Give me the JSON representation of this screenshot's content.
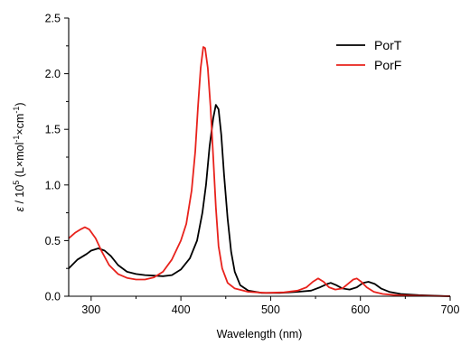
{
  "chart_data": {
    "type": "line",
    "xlabel": "Wavelength (nm)",
    "ylabel": {
      "epsilon": "ε",
      "slash_ten": " / 10",
      "exp5": "5",
      "unit_open": " (L×mol",
      "exp_neg1a": "-1",
      "unit_mid": "×cm",
      "exp_neg1b": "-1",
      "unit_close": ")"
    },
    "xlim": [
      275,
      700
    ],
    "ylim": [
      0,
      2.5
    ],
    "xticks": [
      300,
      400,
      500,
      600,
      700
    ],
    "xtick_labels": [
      "300",
      "400",
      "500",
      "600",
      "700"
    ],
    "yticks": [
      0,
      0.5,
      1.0,
      1.5,
      2.0,
      2.5
    ],
    "ytick_labels": [
      "0.0",
      "0.5",
      "1.0",
      "1.5",
      "2.0",
      "2.5"
    ],
    "grid": false,
    "legend_position": "top-right",
    "series": [
      {
        "name": "PorT",
        "color": "#000000",
        "points": [
          [
            275,
            0.25
          ],
          [
            285,
            0.33
          ],
          [
            295,
            0.38
          ],
          [
            300,
            0.41
          ],
          [
            308,
            0.43
          ],
          [
            315,
            0.41
          ],
          [
            322,
            0.36
          ],
          [
            330,
            0.28
          ],
          [
            340,
            0.22
          ],
          [
            350,
            0.2
          ],
          [
            360,
            0.19
          ],
          [
            370,
            0.185
          ],
          [
            380,
            0.18
          ],
          [
            390,
            0.19
          ],
          [
            400,
            0.24
          ],
          [
            410,
            0.34
          ],
          [
            418,
            0.5
          ],
          [
            424,
            0.75
          ],
          [
            428,
            1.0
          ],
          [
            432,
            1.35
          ],
          [
            436,
            1.6
          ],
          [
            439,
            1.72
          ],
          [
            442,
            1.68
          ],
          [
            445,
            1.45
          ],
          [
            448,
            1.1
          ],
          [
            452,
            0.7
          ],
          [
            456,
            0.4
          ],
          [
            460,
            0.22
          ],
          [
            466,
            0.1
          ],
          [
            475,
            0.05
          ],
          [
            490,
            0.03
          ],
          [
            510,
            0.03
          ],
          [
            530,
            0.04
          ],
          [
            545,
            0.05
          ],
          [
            555,
            0.08
          ],
          [
            563,
            0.11
          ],
          [
            567,
            0.12
          ],
          [
            573,
            0.1
          ],
          [
            580,
            0.07
          ],
          [
            588,
            0.06
          ],
          [
            596,
            0.08
          ],
          [
            603,
            0.12
          ],
          [
            609,
            0.13
          ],
          [
            616,
            0.11
          ],
          [
            623,
            0.07
          ],
          [
            632,
            0.04
          ],
          [
            645,
            0.02
          ],
          [
            665,
            0.01
          ],
          [
            700,
            0.0
          ]
        ]
      },
      {
        "name": "PorF",
        "color": "#e8221c",
        "points": [
          [
            275,
            0.52
          ],
          [
            282,
            0.57
          ],
          [
            288,
            0.6
          ],
          [
            293,
            0.62
          ],
          [
            298,
            0.6
          ],
          [
            305,
            0.52
          ],
          [
            312,
            0.4
          ],
          [
            320,
            0.28
          ],
          [
            330,
            0.2
          ],
          [
            340,
            0.165
          ],
          [
            350,
            0.15
          ],
          [
            360,
            0.15
          ],
          [
            370,
            0.17
          ],
          [
            380,
            0.22
          ],
          [
            390,
            0.33
          ],
          [
            400,
            0.5
          ],
          [
            406,
            0.65
          ],
          [
            412,
            0.95
          ],
          [
            416,
            1.3
          ],
          [
            419,
            1.7
          ],
          [
            422,
            2.05
          ],
          [
            425,
            2.24
          ],
          [
            427,
            2.23
          ],
          [
            430,
            2.05
          ],
          [
            433,
            1.7
          ],
          [
            436,
            1.25
          ],
          [
            439,
            0.8
          ],
          [
            442,
            0.45
          ],
          [
            446,
            0.25
          ],
          [
            452,
            0.12
          ],
          [
            460,
            0.07
          ],
          [
            475,
            0.04
          ],
          [
            495,
            0.03
          ],
          [
            515,
            0.035
          ],
          [
            530,
            0.05
          ],
          [
            540,
            0.08
          ],
          [
            547,
            0.13
          ],
          [
            553,
            0.16
          ],
          [
            559,
            0.13
          ],
          [
            565,
            0.08
          ],
          [
            572,
            0.06
          ],
          [
            580,
            0.07
          ],
          [
            586,
            0.11
          ],
          [
            592,
            0.15
          ],
          [
            596,
            0.16
          ],
          [
            601,
            0.13
          ],
          [
            607,
            0.08
          ],
          [
            615,
            0.04
          ],
          [
            625,
            0.02
          ],
          [
            640,
            0.01
          ],
          [
            660,
            0.005
          ],
          [
            700,
            0.0
          ]
        ]
      }
    ]
  }
}
